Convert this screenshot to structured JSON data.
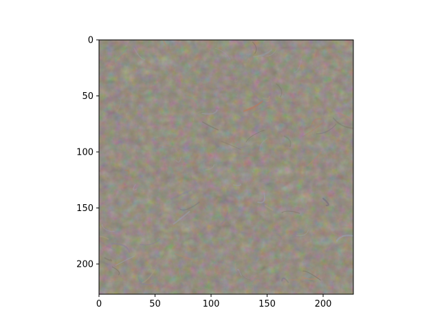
{
  "image_axes": {
    "x_range": [
      0,
      227
    ],
    "y_range": [
      227,
      0
    ],
    "x_ticks": [
      {
        "value": 0,
        "label": "0"
      },
      {
        "value": 50,
        "label": "50"
      },
      {
        "value": 100,
        "label": "100"
      },
      {
        "value": 150,
        "label": "150"
      },
      {
        "value": 200,
        "label": "200"
      }
    ],
    "y_ticks": [
      {
        "value": 0,
        "label": "0"
      },
      {
        "value": 50,
        "label": "50"
      },
      {
        "value": 100,
        "label": "100"
      },
      {
        "value": 150,
        "label": "150"
      },
      {
        "value": 200,
        "label": "200"
      }
    ]
  },
  "image": {
    "base_color": "#8f8676",
    "texture_palette": [
      "#a3987e",
      "#7c7466",
      "#b08870",
      "#8c7f98",
      "#7f9c8a",
      "#b97a5e",
      "#9a9fb0",
      "#6d6a78"
    ]
  }
}
